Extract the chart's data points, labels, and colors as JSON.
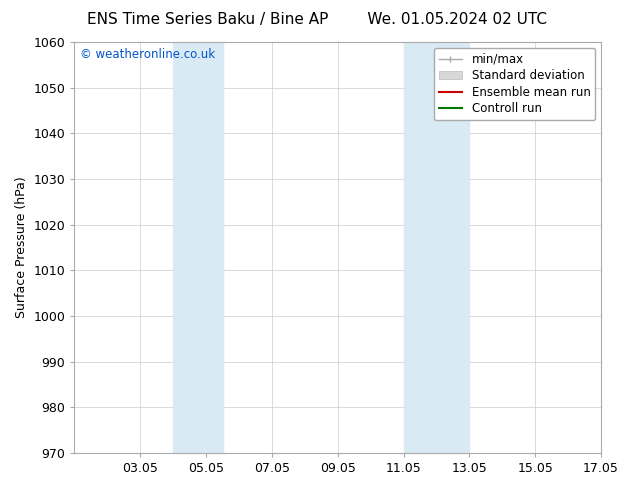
{
  "title_left": "ENS Time Series Baku / Bine AP",
  "title_right": "We. 01.05.2024 02 UTC",
  "ylabel": "Surface Pressure (hPa)",
  "ylim": [
    970,
    1060
  ],
  "yticks": [
    970,
    980,
    990,
    1000,
    1010,
    1020,
    1030,
    1040,
    1050,
    1060
  ],
  "xlim_start": 1.05,
  "xlim_end": 17.05,
  "xtick_labels": [
    "03.05",
    "05.05",
    "07.05",
    "09.05",
    "11.05",
    "13.05",
    "15.05",
    "17.05"
  ],
  "xtick_positions": [
    3.05,
    5.05,
    7.05,
    9.05,
    11.05,
    13.05,
    15.05,
    17.05
  ],
  "shaded_bands": [
    {
      "x_start": 4.05,
      "x_end": 5.55,
      "color": "#daeaf5"
    },
    {
      "x_start": 11.05,
      "x_end": 13.05,
      "color": "#daeaf5"
    }
  ],
  "copyright_text": "© weatheronline.co.uk",
  "copyright_color": "#0055cc",
  "bg_color": "#ffffff",
  "grid_color": "#cccccc",
  "title_fontsize": 11,
  "label_fontsize": 9,
  "tick_fontsize": 9,
  "legend_fontsize": 8.5,
  "spine_color": "#aaaaaa"
}
